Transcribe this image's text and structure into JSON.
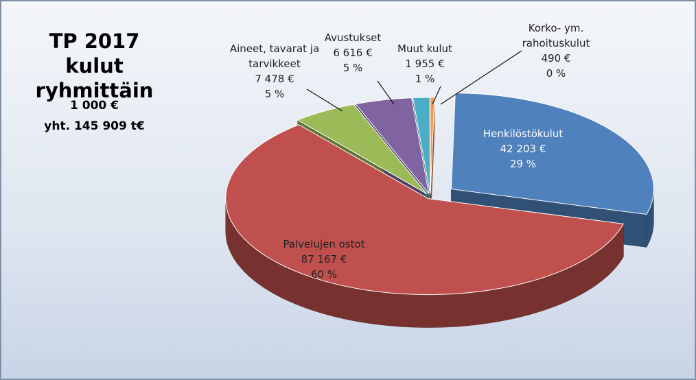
{
  "chart_data": {
    "type": "pie3d",
    "title": "TP 2017 kulut ryhmittäin",
    "subtitle": [
      "1 000 €",
      "yht. 145 909 t€"
    ],
    "categories": [
      "Henkilöstökulut",
      "Palvelujen ostot",
      "Aineet, tavarat ja tarvikkeet",
      "Avustukset",
      "Muut kulut",
      "Korko- ym. rahoituskulut"
    ],
    "values": [
      42203,
      87167,
      7478,
      6616,
      1955,
      490
    ],
    "value_labels": [
      "42 203 €",
      "87 167 €",
      "7 478 €",
      "6 616 €",
      "1 955 €",
      "490 €"
    ],
    "percent_labels": [
      "29 %",
      "60 %",
      "5 %",
      "5 %",
      "1 %",
      "0 %"
    ],
    "colors": [
      "#4f81bd",
      "#c0504d",
      "#9bbb59",
      "#8064a2",
      "#4bacc6",
      "#f79646"
    ]
  }
}
